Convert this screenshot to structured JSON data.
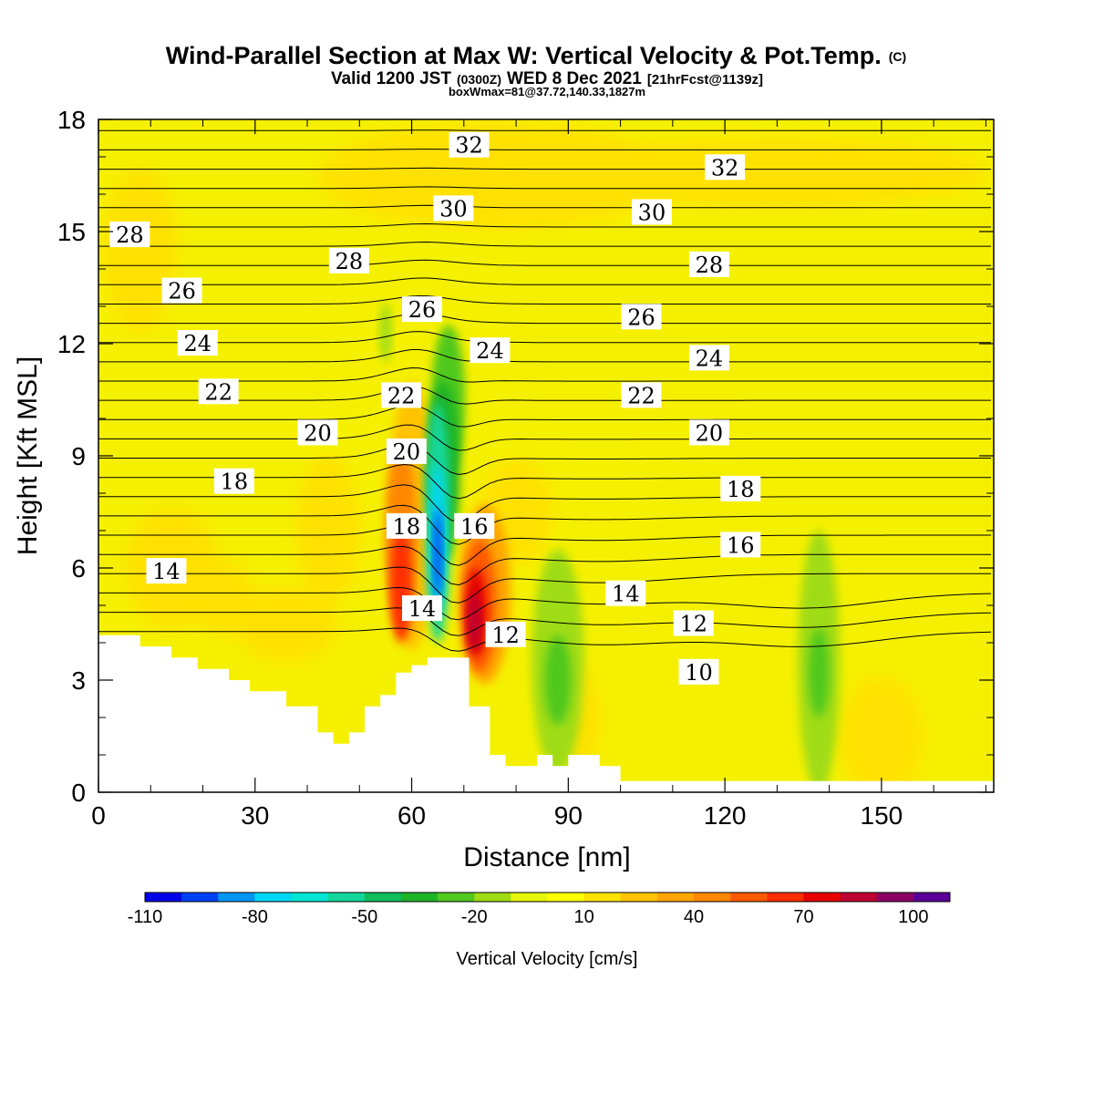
{
  "header": {
    "title_main": "Wind-Parallel Section at Max W: Vertical Velocity & Pot.Temp.",
    "title_mark": "(C)",
    "subtitle_a": "Valid 1200 JST",
    "subtitle_b": "(0300Z)",
    "subtitle_c": "WED 8 Dec 2021",
    "subtitle_d": "[21hrFcst@1139z]",
    "subtitle_e": "boxWmax=81@37.72,140.33,1827m"
  },
  "chart_data": {
    "type": "heatmap",
    "xlabel": "Distance [nm]",
    "ylabel": "Height [Kft MSL]",
    "xlim": [
      0,
      171.5
    ],
    "ylim": [
      0,
      18
    ],
    "x_ticks": [
      "0",
      "30",
      "60",
      "90",
      "120",
      "150"
    ],
    "y_ticks": [
      "0",
      "3",
      "6",
      "9",
      "12",
      "15",
      "18"
    ],
    "colorbar": {
      "label": "Vertical Velocity [cm/s]",
      "tick_labels": [
        "-110",
        "-80",
        "-50",
        "-20",
        "10",
        "40",
        "70",
        "100"
      ],
      "bins": [
        -110,
        -100,
        -90,
        -80,
        -70,
        -60,
        -50,
        -40,
        -30,
        -20,
        -10,
        0,
        10,
        20,
        30,
        40,
        50,
        60,
        70,
        80,
        90,
        100
      ],
      "colors": [
        "#0000e6",
        "#0041f5",
        "#0096f5",
        "#00d7f5",
        "#00e6d2",
        "#14d79b",
        "#0fbe5a",
        "#1eb428",
        "#50c81e",
        "#a0dc14",
        "#e6f50a",
        "#ffff00",
        "#ffe100",
        "#ffc300",
        "#ffa500",
        "#ff8700",
        "#ff5a00",
        "#ff2d00",
        "#e60000",
        "#be0032",
        "#8c0064",
        "#5a0096"
      ]
    },
    "contour_labels": [
      {
        "text": "32",
        "x": 71,
        "y": 17.3
      },
      {
        "text": "32",
        "x": 120,
        "y": 16.7
      },
      {
        "text": "30",
        "x": 68,
        "y": 15.6
      },
      {
        "text": "30",
        "x": 106,
        "y": 15.5
      },
      {
        "text": "28",
        "x": 6,
        "y": 14.9
      },
      {
        "text": "28",
        "x": 48,
        "y": 14.2
      },
      {
        "text": "28",
        "x": 117,
        "y": 14.1
      },
      {
        "text": "26",
        "x": 16,
        "y": 13.4
      },
      {
        "text": "26",
        "x": 62,
        "y": 12.9
      },
      {
        "text": "26",
        "x": 104,
        "y": 12.7
      },
      {
        "text": "24",
        "x": 19,
        "y": 12.0
      },
      {
        "text": "24",
        "x": 75,
        "y": 11.8
      },
      {
        "text": "24",
        "x": 117,
        "y": 11.6
      },
      {
        "text": "22",
        "x": 23,
        "y": 10.7
      },
      {
        "text": "22",
        "x": 58,
        "y": 10.6
      },
      {
        "text": "22",
        "x": 104,
        "y": 10.6
      },
      {
        "text": "20",
        "x": 42,
        "y": 9.6
      },
      {
        "text": "20",
        "x": 59,
        "y": 9.1
      },
      {
        "text": "20",
        "x": 117,
        "y": 9.6
      },
      {
        "text": "18",
        "x": 26,
        "y": 8.3
      },
      {
        "text": "18",
        "x": 59,
        "y": 7.1
      },
      {
        "text": "18",
        "x": 123,
        "y": 8.1
      },
      {
        "text": "16",
        "x": 72,
        "y": 7.1
      },
      {
        "text": "16",
        "x": 123,
        "y": 6.6
      },
      {
        "text": "14",
        "x": 13,
        "y": 5.9
      },
      {
        "text": "14",
        "x": 62,
        "y": 4.9
      },
      {
        "text": "14",
        "x": 101,
        "y": 5.3
      },
      {
        "text": "12",
        "x": 78,
        "y": 4.2
      },
      {
        "text": "12",
        "x": 114,
        "y": 4.5
      },
      {
        "text": "10",
        "x": 115,
        "y": 3.2
      }
    ]
  }
}
